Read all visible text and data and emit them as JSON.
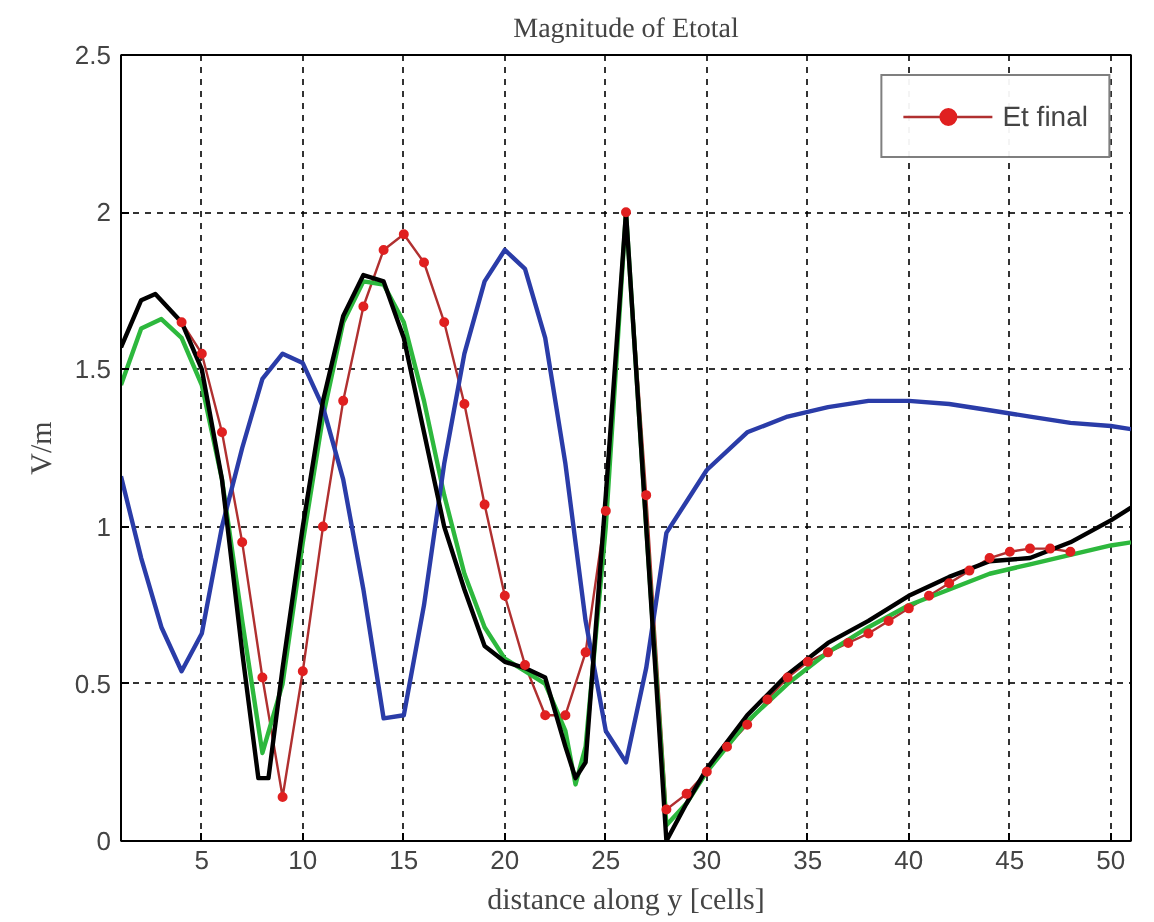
{
  "chart_data": {
    "type": "line",
    "title": "Magnitude of Etotal",
    "xlabel": "distance along y [cells]",
    "ylabel": "V/m",
    "xlim": [
      1,
      51
    ],
    "ylim": [
      0,
      2.5
    ],
    "xticks": [
      5,
      10,
      15,
      20,
      25,
      30,
      35,
      40,
      45,
      50
    ],
    "yticks": [
      0,
      0.5,
      1,
      1.5,
      2,
      2.5
    ],
    "grid": true,
    "legend": "top right",
    "line_style": "solid",
    "series": [
      {
        "name": "Et final",
        "color": "#b03030",
        "marker": "circle",
        "x": [
          4,
          5,
          6,
          7,
          8,
          9,
          10,
          11,
          12,
          13,
          14,
          15,
          16,
          17,
          18,
          19,
          20,
          21,
          22,
          23,
          24,
          25,
          26,
          27,
          28,
          29,
          30,
          31,
          32,
          33,
          34,
          35,
          36,
          37,
          38,
          39,
          40,
          41,
          42,
          43,
          44,
          45,
          46,
          47,
          48
        ],
        "values": [
          1.65,
          1.55,
          1.3,
          0.95,
          0.52,
          0.14,
          0.54,
          1.0,
          1.4,
          1.7,
          1.88,
          1.93,
          1.84,
          1.65,
          1.39,
          1.07,
          0.78,
          0.56,
          0.4,
          0.4,
          0.6,
          1.05,
          2.0,
          1.1,
          0.1,
          0.15,
          0.22,
          0.3,
          0.37,
          0.45,
          0.52,
          0.57,
          0.6,
          0.63,
          0.66,
          0.7,
          0.74,
          0.78,
          0.82,
          0.86,
          0.9,
          0.92,
          0.93,
          0.93,
          0.92
        ]
      },
      {
        "color": "#2db83d",
        "marker": "none",
        "x": [
          1,
          2,
          3,
          4,
          5,
          6,
          7,
          8,
          9,
          10,
          11,
          12,
          13,
          14,
          15,
          16,
          17,
          18,
          19,
          20,
          21,
          22,
          23,
          23.5,
          24,
          25,
          26,
          27,
          28,
          29,
          30,
          32,
          34,
          36,
          38,
          40,
          42,
          44,
          46,
          48,
          50,
          51
        ],
        "values": [
          1.45,
          1.63,
          1.66,
          1.6,
          1.45,
          1.15,
          0.7,
          0.28,
          0.5,
          0.95,
          1.35,
          1.65,
          1.78,
          1.77,
          1.65,
          1.4,
          1.1,
          0.85,
          0.68,
          0.58,
          0.54,
          0.5,
          0.35,
          0.18,
          0.3,
          1.0,
          2.0,
          1.0,
          0.05,
          0.12,
          0.22,
          0.38,
          0.5,
          0.6,
          0.68,
          0.75,
          0.8,
          0.85,
          0.88,
          0.91,
          0.94,
          0.95
        ]
      },
      {
        "color": "#2a3ca8",
        "marker": "none",
        "x": [
          1,
          2,
          3,
          4,
          5,
          6,
          7,
          8,
          9,
          10,
          11,
          12,
          13,
          14,
          15,
          16,
          17,
          18,
          19,
          20,
          21,
          22,
          23,
          24,
          25,
          26,
          27,
          28,
          29,
          30,
          32,
          34,
          36,
          38,
          40,
          42,
          44,
          46,
          48,
          50,
          51
        ],
        "values": [
          1.16,
          0.9,
          0.68,
          0.54,
          0.66,
          1.0,
          1.25,
          1.47,
          1.55,
          1.52,
          1.38,
          1.15,
          0.8,
          0.39,
          0.4,
          0.75,
          1.2,
          1.55,
          1.78,
          1.88,
          1.82,
          1.6,
          1.2,
          0.7,
          0.35,
          0.25,
          0.55,
          0.98,
          1.08,
          1.18,
          1.3,
          1.35,
          1.38,
          1.4,
          1.4,
          1.39,
          1.37,
          1.35,
          1.33,
          1.32,
          1.31
        ]
      },
      {
        "color": "#000000",
        "marker": "none",
        "x": [
          1,
          2,
          2.7,
          4,
          5,
          6,
          7,
          7.8,
          8.3,
          9,
          10,
          11,
          12,
          13,
          14,
          15,
          16,
          17,
          18,
          19,
          20,
          21,
          22,
          23,
          23.5,
          24,
          25,
          26,
          27,
          28,
          29,
          30,
          32,
          34,
          36,
          38,
          40,
          42,
          44,
          46,
          48,
          50,
          51
        ],
        "values": [
          1.57,
          1.72,
          1.74,
          1.65,
          1.5,
          1.15,
          0.6,
          0.2,
          0.2,
          0.55,
          1.0,
          1.4,
          1.67,
          1.8,
          1.78,
          1.6,
          1.3,
          1.0,
          0.8,
          0.62,
          0.57,
          0.55,
          0.52,
          0.3,
          0.2,
          0.25,
          1.1,
          2.0,
          1.0,
          0.0,
          0.12,
          0.23,
          0.4,
          0.53,
          0.63,
          0.7,
          0.78,
          0.84,
          0.89,
          0.9,
          0.95,
          1.02,
          1.06
        ]
      }
    ]
  }
}
